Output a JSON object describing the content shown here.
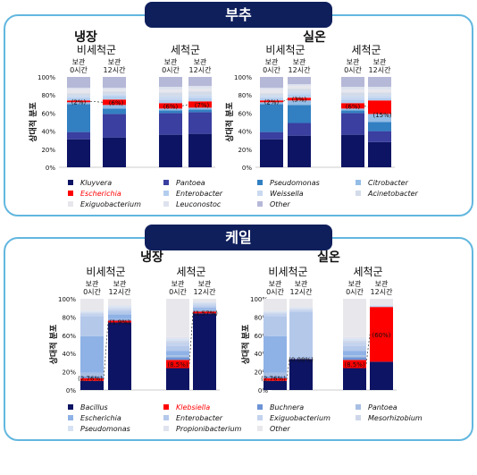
{
  "sections": [
    {
      "header": "부추"
    },
    {
      "header": "케일"
    }
  ],
  "colors": {
    "header_bg": "#0f1f5c",
    "panel_border": "#62b7df",
    "highlight": "#ff0000"
  },
  "chart_data": [
    {
      "type": "bar",
      "stacked": true,
      "section": "부추",
      "condition": "냉장",
      "groups": [
        "비세척군",
        "세척군"
      ],
      "bar_labels": [
        "보관 0시간",
        "보관 12시간",
        "보관 0시간",
        "보관 12시간"
      ],
      "ylabel": "상대적 분포",
      "yticks": [
        "0%",
        "20%",
        "40%",
        "60%",
        "80%",
        "100%"
      ],
      "ylim": [
        0,
        100
      ],
      "series": [
        {
          "name": "Kluyvera",
          "color": "#0d1464",
          "values": [
            31,
            33,
            36,
            37
          ]
        },
        {
          "name": "Pantoea",
          "color": "#3a3fa0",
          "values": [
            8,
            26,
            24,
            24
          ]
        },
        {
          "name": "Pseudomonas",
          "color": "#3280c2",
          "values": [
            31,
            6,
            3,
            3
          ]
        },
        {
          "name": "Citrobacter",
          "color": "#94bde6",
          "values": [
            2,
            4,
            2,
            2
          ]
        },
        {
          "name": "Escherichia",
          "color": "#ff0000",
          "values": [
            2,
            6,
            6,
            7
          ]
        },
        {
          "name": "Enterobacter",
          "color": "#b3cdee",
          "values": [
            3,
            4,
            4,
            4
          ]
        },
        {
          "name": "Weissella",
          "color": "#cad9f0",
          "values": [
            2,
            2,
            4,
            3
          ]
        },
        {
          "name": "Acinetobacter",
          "color": "#d3dbe8",
          "values": [
            3,
            3,
            4,
            4
          ]
        },
        {
          "name": "Exiguobacterium",
          "color": "#e6e6ec",
          "values": [
            4,
            2,
            3,
            3
          ]
        },
        {
          "name": "Leuconostoc",
          "color": "#dde2ee",
          "values": [
            2,
            2,
            3,
            3
          ]
        },
        {
          "name": "Other",
          "color": "#b6b8d8",
          "values": [
            12,
            12,
            11,
            10
          ]
        }
      ],
      "annotations": [
        {
          "bar": 0,
          "text": "(2%)"
        },
        {
          "bar": 1,
          "text": "(6%)"
        },
        {
          "bar": 2,
          "text": "(6%)"
        },
        {
          "bar": 3,
          "text": "(7%)"
        }
      ]
    },
    {
      "type": "bar",
      "stacked": true,
      "section": "부추",
      "condition": "실온",
      "groups": [
        "비세척군",
        "세척군"
      ],
      "bar_labels": [
        "보관 0시간",
        "보관 12시간",
        "보관 0시간",
        "보관 12시간"
      ],
      "ylabel": "상대적 분포",
      "yticks": [
        "0%",
        "20%",
        "40%",
        "60%",
        "80%",
        "100%"
      ],
      "ylim": [
        0,
        100
      ],
      "series": [
        {
          "name": "Kluyvera",
          "color": "#0d1464",
          "values": [
            31,
            35,
            36,
            28
          ]
        },
        {
          "name": "Pantoea",
          "color": "#3a3fa0",
          "values": [
            8,
            14,
            24,
            12
          ]
        },
        {
          "name": "Pseudomonas",
          "color": "#3280c2",
          "values": [
            31,
            20,
            3,
            10
          ]
        },
        {
          "name": "Citrobacter",
          "color": "#94bde6",
          "values": [
            2,
            5,
            2,
            9
          ]
        },
        {
          "name": "Escherichia",
          "color": "#ff0000",
          "values": [
            2,
            3,
            6,
            15
          ]
        },
        {
          "name": "Enterobacter",
          "color": "#b3cdee",
          "values": [
            3,
            4,
            4,
            3
          ]
        },
        {
          "name": "Weissella",
          "color": "#cad9f0",
          "values": [
            2,
            3,
            4,
            3
          ]
        },
        {
          "name": "Acinetobacter",
          "color": "#d3dbe8",
          "values": [
            3,
            3,
            4,
            3
          ]
        },
        {
          "name": "Exiguobacterium",
          "color": "#e6e6ec",
          "values": [
            4,
            3,
            3,
            3
          ]
        },
        {
          "name": "Leuconostoc",
          "color": "#dde2ee",
          "values": [
            2,
            2,
            3,
            3
          ]
        },
        {
          "name": "Other",
          "color": "#b6b8d8",
          "values": [
            12,
            8,
            11,
            11
          ]
        }
      ],
      "annotations": [
        {
          "bar": 0,
          "text": "(2%)"
        },
        {
          "bar": 1,
          "text": "(3%)"
        },
        {
          "bar": 2,
          "text": "(6%)"
        },
        {
          "bar": 3,
          "text": "(15%)"
        }
      ]
    },
    {
      "type": "bar",
      "stacked": true,
      "section": "케일",
      "condition": "냉장",
      "groups": [
        "비세척군",
        "세척군"
      ],
      "bar_labels": [
        "보관 0시간",
        "보관 12시간",
        "보관 0시간",
        "보관 12시간"
      ],
      "ylabel": "상대적 분포",
      "yticks": [
        "0%",
        "20%",
        "40%",
        "60%",
        "80%",
        "100%"
      ],
      "ylim": [
        0,
        100
      ],
      "series": [
        {
          "name": "Bacillus",
          "color": "#0d1464",
          "values": [
            10,
            74,
            24,
            84
          ]
        },
        {
          "name": "Klebsiella",
          "color": "#ff0000",
          "values": [
            3,
            2,
            9,
            2
          ]
        },
        {
          "name": "Buchnera",
          "color": "#6c93d6",
          "values": [
            2,
            1,
            3,
            1
          ]
        },
        {
          "name": "Pantoea",
          "color": "#a8bfe3",
          "values": [
            4,
            1,
            2,
            1
          ]
        },
        {
          "name": "Escherichia",
          "color": "#8fb2e6",
          "values": [
            40,
            5,
            5,
            2
          ]
        },
        {
          "name": "Enterobacter",
          "color": "#b4c8ea",
          "values": [
            22,
            4,
            5,
            2
          ]
        },
        {
          "name": "Exiguobacterium",
          "color": "#c4d3ee",
          "values": [
            3,
            2,
            4,
            2
          ]
        },
        {
          "name": "Mesorhizobium",
          "color": "#ced7ea",
          "values": [
            1,
            1,
            2,
            1
          ]
        },
        {
          "name": "Pseudomonas",
          "color": "#d6e2f4",
          "values": [
            1,
            2,
            2,
            1
          ]
        },
        {
          "name": "Propionibacterium",
          "color": "#dfe3ee",
          "values": [
            1,
            1,
            2,
            1
          ]
        },
        {
          "name": "Other",
          "color": "#e8e8ec",
          "values": [
            13,
            7,
            42,
            3
          ]
        }
      ],
      "annotations": [
        {
          "bar": 0,
          "text": "(2.76%)"
        },
        {
          "bar": 1,
          "text": "(1.9%)"
        },
        {
          "bar": 2,
          "text": "(8.5%)"
        },
        {
          "bar": 3,
          "text": "(1.57%)"
        }
      ]
    },
    {
      "type": "bar",
      "stacked": true,
      "section": "케일",
      "condition": "실온",
      "groups": [
        "비세척군",
        "세척군"
      ],
      "bar_labels": [
        "보관 0시간",
        "보관 12시간",
        "보관 0시간",
        "보관 12시간"
      ],
      "ylabel": "상대적 분포",
      "yticks": [
        "0%",
        "20%",
        "40%",
        "60%",
        "80%",
        "100%"
      ],
      "ylim": [
        0,
        100
      ],
      "series": [
        {
          "name": "Bacillus",
          "color": "#0d1464",
          "values": [
            10,
            34,
            24,
            31
          ]
        },
        {
          "name": "Klebsiella",
          "color": "#ff0000",
          "values": [
            3,
            0.1,
            9,
            60
          ]
        },
        {
          "name": "Buchnera",
          "color": "#6c93d6",
          "values": [
            2,
            0,
            3,
            0
          ]
        },
        {
          "name": "Pantoea",
          "color": "#a8bfe3",
          "values": [
            4,
            1,
            2,
            0
          ]
        },
        {
          "name": "Escherichia",
          "color": "#8fb2e6",
          "values": [
            40,
            1,
            5,
            0
          ]
        },
        {
          "name": "Enterobacter",
          "color": "#b4c8ea",
          "values": [
            22,
            50,
            5,
            1
          ]
        },
        {
          "name": "Exiguobacterium",
          "color": "#c4d3ee",
          "values": [
            3,
            2,
            4,
            0
          ]
        },
        {
          "name": "Mesorhizobium",
          "color": "#ced7ea",
          "values": [
            1,
            1,
            2,
            0
          ]
        },
        {
          "name": "Pseudomonas",
          "color": "#d6e2f4",
          "values": [
            1,
            1,
            2,
            1
          ]
        },
        {
          "name": "Propionibacterium",
          "color": "#dfe3ee",
          "values": [
            1,
            1,
            2,
            0
          ]
        },
        {
          "name": "Other",
          "color": "#e8e8ec",
          "values": [
            13,
            9,
            42,
            7
          ]
        }
      ],
      "annotations": [
        {
          "bar": 0,
          "text": "(2.76%)"
        },
        {
          "bar": 1,
          "text": "(0.08%)"
        },
        {
          "bar": 2,
          "text": "(8.5%)"
        },
        {
          "bar": 3,
          "text": "(60%)"
        }
      ]
    }
  ],
  "legends": [
    {
      "items": [
        {
          "name": "Kluyvera",
          "color": "#0d1464"
        },
        {
          "name": "Pantoea",
          "color": "#3a3fa0"
        },
        {
          "name": "Pseudomonas",
          "color": "#3280c2"
        },
        {
          "name": "Citrobacter",
          "color": "#94bde6"
        },
        {
          "name": "Escherichia",
          "color": "#ff0000",
          "highlight": true
        },
        {
          "name": "Enterobacter",
          "color": "#b3cdee"
        },
        {
          "name": "Weissella",
          "color": "#cad9f0"
        },
        {
          "name": "Acinetobacter",
          "color": "#d3dbe8"
        },
        {
          "name": "Exiguobacterium",
          "color": "#e6e6ec"
        },
        {
          "name": "Leuconostoc",
          "color": "#dde2ee"
        },
        {
          "name": "Other",
          "color": "#b6b8d8"
        }
      ]
    },
    {
      "items": [
        {
          "name": "Bacillus",
          "color": "#0d1464"
        },
        {
          "name": "Klebsiella",
          "color": "#ff0000",
          "highlight": true
        },
        {
          "name": "Buchnera",
          "color": "#6c93d6"
        },
        {
          "name": "Pantoea",
          "color": "#a8bfe3"
        },
        {
          "name": "Escherichia",
          "color": "#8fb2e6"
        },
        {
          "name": "Enterobacter",
          "color": "#b4c8ea"
        },
        {
          "name": "Exiguobacterium",
          "color": "#c4d3ee"
        },
        {
          "name": "Mesorhizobium",
          "color": "#ced7ea"
        },
        {
          "name": "Pseudomonas",
          "color": "#d6e2f4"
        },
        {
          "name": "Propionibacterium",
          "color": "#dfe3ee"
        },
        {
          "name": "Other",
          "color": "#e8e8ec"
        }
      ]
    }
  ]
}
